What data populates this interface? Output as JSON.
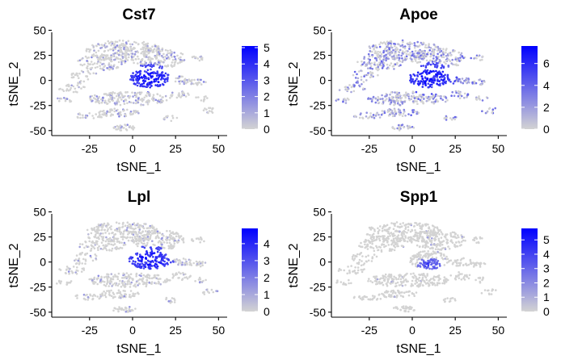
{
  "colors": {
    "low": "#d3d3d3",
    "high": "#0000ff"
  },
  "chart_data": [
    {
      "type": "scatter",
      "title": "Cst7",
      "xlabel": "tSNE_1",
      "ylabel": "tSNE_2",
      "xticks": [
        "-25",
        "0",
        "25",
        "50"
      ],
      "yticks": [
        "50",
        "25",
        "0",
        "-25",
        "-50"
      ],
      "xlim": [
        -47,
        55
      ],
      "ylim": [
        -55,
        48
      ],
      "legend_ticks": [
        "5",
        "4",
        "3",
        "2",
        "1",
        "0"
      ],
      "color_range": [
        0,
        5.1
      ],
      "hotspot": {
        "x": 10,
        "y": 2,
        "radius": 14
      },
      "expression_level": "medium",
      "legend_position": "right"
    },
    {
      "type": "scatter",
      "title": "Apoe",
      "xlabel": "tSNE_1",
      "ylabel": "tSNE_2",
      "xticks": [
        "-25",
        "0",
        "25",
        "50"
      ],
      "yticks": [
        "50",
        "25",
        "0",
        "-25",
        "-50"
      ],
      "xlim": [
        -47,
        55
      ],
      "ylim": [
        -55,
        48
      ],
      "legend_ticks": [
        "6",
        "4",
        "2",
        "0"
      ],
      "color_range": [
        0,
        7.6
      ],
      "hotspot": {
        "x": 10,
        "y": 2,
        "radius": 16
      },
      "expression_level": "high",
      "legend_position": "right"
    },
    {
      "type": "scatter",
      "title": "Lpl",
      "xlabel": "tSNE_1",
      "ylabel": "tSNE_2",
      "xticks": [
        "-25",
        "0",
        "25",
        "50"
      ],
      "yticks": [
        "50",
        "25",
        "0",
        "-25",
        "-50"
      ],
      "xlim": [
        -47,
        55
      ],
      "ylim": [
        -55,
        48
      ],
      "legend_ticks": [
        "4",
        "3",
        "2",
        "1",
        "0"
      ],
      "color_range": [
        0,
        4.9
      ],
      "hotspot": {
        "x": 10,
        "y": 2,
        "radius": 14
      },
      "expression_level": "low",
      "legend_position": "right"
    },
    {
      "type": "scatter",
      "title": "Spp1",
      "xlabel": "tSNE_1",
      "ylabel": "tSNE_2",
      "xticks": [
        "-25",
        "0",
        "25",
        "50"
      ],
      "yticks": [
        "50",
        "25",
        "0",
        "-25",
        "-50"
      ],
      "xlim": [
        -47,
        55
      ],
      "ylim": [
        -55,
        48
      ],
      "legend_ticks": [
        "5",
        "4",
        "3",
        "2",
        "1",
        "0"
      ],
      "color_range": [
        0,
        5.8
      ],
      "hotspot": {
        "x": 10,
        "y": -3,
        "radius": 7
      },
      "expression_level": "very-low",
      "legend_position": "right"
    }
  ]
}
